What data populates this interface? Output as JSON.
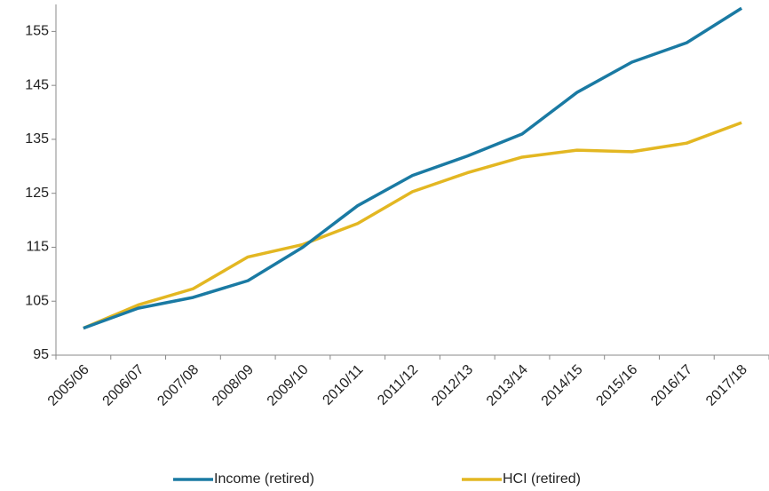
{
  "chart_data": {
    "type": "line",
    "categories": [
      "2005/06",
      "2006/07",
      "2007/08",
      "2008/09",
      "2009/10",
      "2010/11",
      "2011/12",
      "2012/13",
      "2013/14",
      "2014/15",
      "2015/16",
      "2016/17",
      "2017/18"
    ],
    "series": [
      {
        "name": "Income (retired)",
        "color": "#1a7aa3",
        "values": [
          100,
          103.7,
          105.7,
          108.8,
          115,
          122.7,
          128.3,
          131.9,
          136,
          143.7,
          149.3,
          152.9,
          159.3
        ]
      },
      {
        "name": "HCI (retired)",
        "color": "#e3b722",
        "values": [
          100,
          104.3,
          107.3,
          113.2,
          115.5,
          119.4,
          125.3,
          128.8,
          131.7,
          133,
          132.7,
          134.3,
          138.1
        ]
      }
    ],
    "ylim": [
      95,
      160
    ],
    "yticks": [
      95,
      105,
      115,
      125,
      135,
      145,
      155
    ],
    "legend": "bottom"
  }
}
